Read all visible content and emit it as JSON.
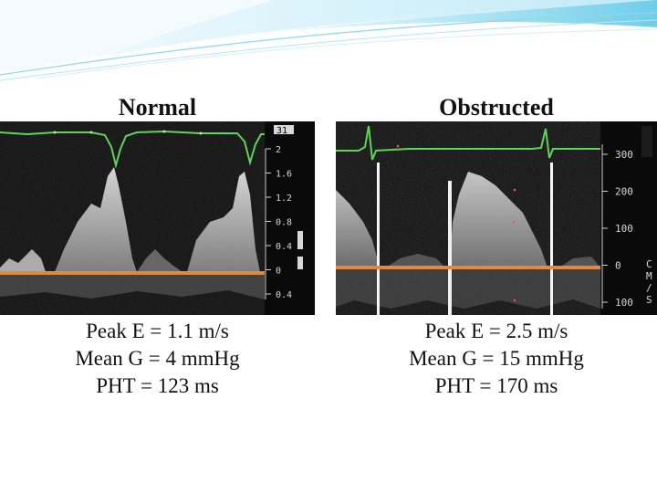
{
  "panels": {
    "normal": {
      "title": "Normal",
      "scale_labels": [
        "2",
        "1.6",
        "1.2",
        "0.8",
        "0.4",
        "0",
        "0.4"
      ],
      "corner_label": "31",
      "stats": [
        "Peak E = 1.1 m/s",
        "Mean G = 4 mmHg",
        "PHT = 123 ms"
      ]
    },
    "obstructed": {
      "title": "Obstructed",
      "scale_labels": [
        "300",
        "200",
        "100",
        "0",
        "100"
      ],
      "unit_label": [
        "C",
        "M",
        "/",
        "S"
      ],
      "stats": [
        "Peak E = 2.5 m/s",
        "Mean G = 15 mmHg",
        "PHT = 170 ms"
      ]
    }
  },
  "colors": {
    "background": "#ffffff",
    "banner_light": "#cfeefa",
    "banner_mid": "#6fcde8",
    "ecg_trace": "#5fd35a",
    "baseline": "#e08a3a",
    "echo_bg": "#0a0a0a"
  }
}
